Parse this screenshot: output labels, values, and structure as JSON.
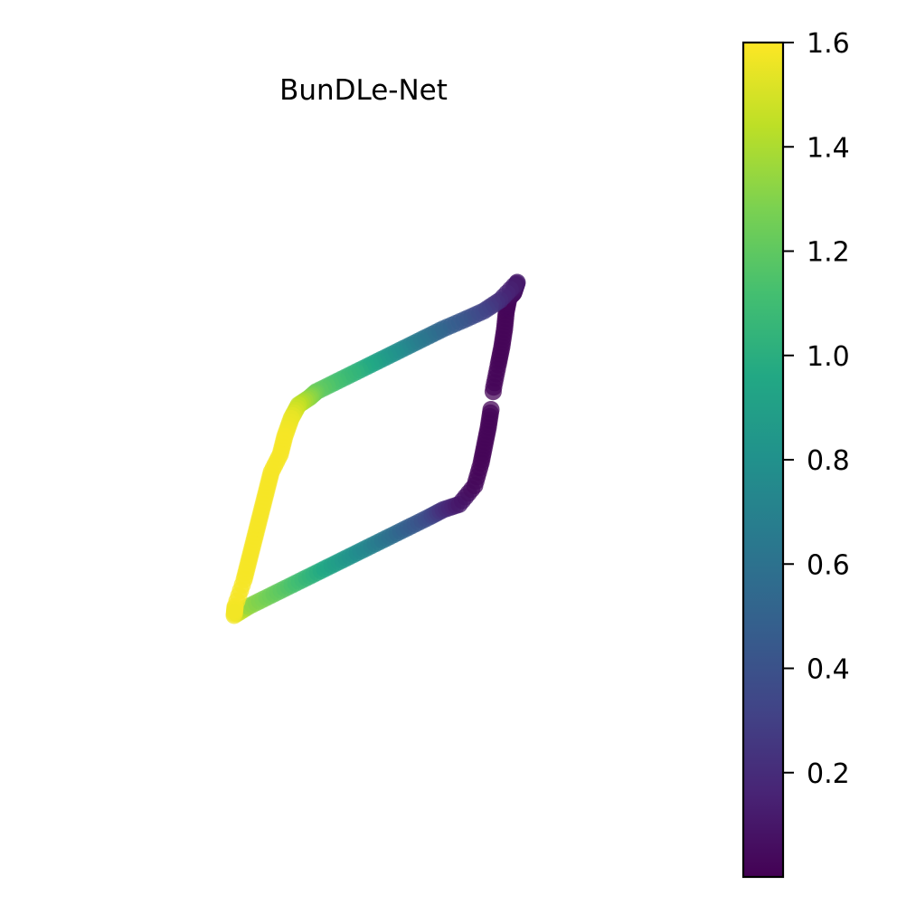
{
  "chart_data": {
    "type": "scatter",
    "title": "BunDLe-Net",
    "xlabel": "",
    "ylabel": "",
    "axes_visible": false,
    "grid": false,
    "colormap": "viridis",
    "colorbar": {
      "placement": "right",
      "min": 0.0,
      "max": 1.6,
      "ticks": [
        "0.2",
        "0.4",
        "0.6",
        "0.8",
        "1.0",
        "1.2",
        "1.4",
        "1.6"
      ]
    },
    "marker_alpha": 0.75,
    "series": [
      {
        "points_note": "trajectory forming a slanted parallelogram loop; x,y in plot data units, c = color value",
        "x": [
          25.9,
          27.5,
          29.5,
          31.5,
          33.5,
          35.5,
          37.5,
          39.5,
          41.5,
          43.5,
          45.5,
          47.5,
          49.0,
          50.8,
          52.5,
          53.2,
          53.6,
          54.0,
          54.3,
          54.6,
          55.1,
          55.5,
          55.8,
          56.0,
          56.3,
          56.8,
          57.0,
          57.2,
          55.3,
          53.5,
          51.3,
          49.0,
          47.0,
          45.0,
          43.0,
          41.0,
          39.0,
          37.0,
          35.0,
          34.2,
          33.0,
          32.2,
          31.5,
          31.0,
          30.0,
          29.5,
          29.0,
          28.5,
          28.0,
          27.5,
          27.0,
          26.0
        ],
        "y": [
          32.0,
          33.0,
          34.0,
          35.0,
          36.0,
          37.0,
          38.0,
          39.0,
          40.0,
          41.0,
          42.0,
          43.0,
          43.8,
          44.4,
          46.5,
          49.0,
          51.0,
          53.0,
          55.0,
          57.5,
          60.0,
          62.0,
          64.0,
          66.0,
          67.5,
          68.0,
          68.6,
          69.2,
          67.2,
          66.0,
          65.0,
          64.0,
          63.0,
          62.0,
          61.0,
          60.0,
          59.0,
          58.0,
          57.0,
          56.3,
          55.5,
          54.0,
          52.0,
          50.0,
          48.0,
          46.0,
          44.0,
          42.0,
          40.0,
          38.0,
          36.0,
          33.0
        ],
        "c": [
          1.57,
          1.34,
          1.26,
          1.18,
          1.08,
          0.98,
          0.88,
          0.78,
          0.68,
          0.57,
          0.46,
          0.36,
          0.22,
          0.11,
          0.04,
          0.02,
          0.02,
          0.02,
          0.02,
          0.02,
          0.02,
          0.02,
          0.02,
          0.02,
          0.03,
          0.05,
          0.08,
          0.11,
          0.2,
          0.3,
          0.4,
          0.5,
          0.6,
          0.7,
          0.82,
          0.94,
          1.04,
          1.12,
          1.22,
          1.32,
          1.45,
          1.55,
          1.58,
          1.58,
          1.58,
          1.58,
          1.58,
          1.58,
          1.58,
          1.58,
          1.58,
          1.58
        ]
      }
    ]
  },
  "colors": {
    "axis": "#000000",
    "background": "#ffffff"
  }
}
